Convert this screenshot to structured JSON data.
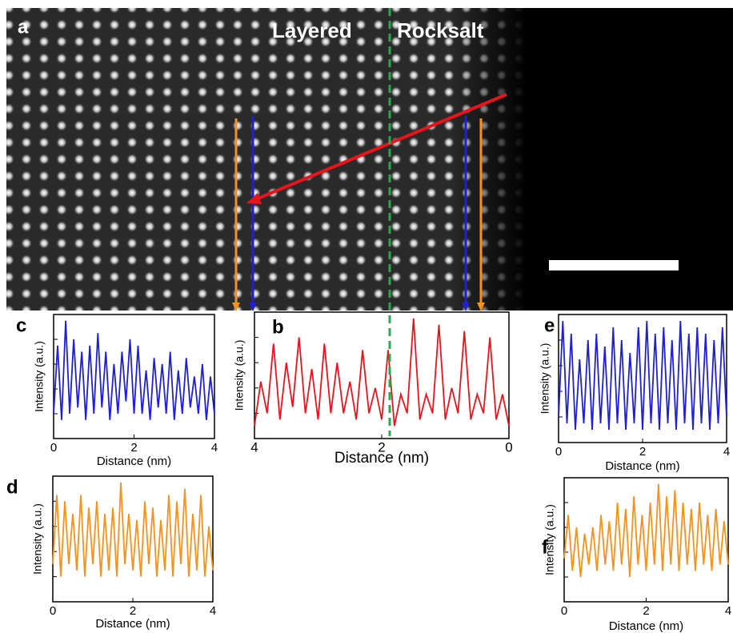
{
  "image": {
    "label": "a",
    "annotations": [
      "Layered",
      "Rocksalt"
    ]
  },
  "chart_data": [
    {
      "type": "line",
      "label": "c",
      "xlabel": "Distance (nm)",
      "ylabel": "Intensity (a.u.)",
      "xlim": [
        0,
        4
      ],
      "xticks": [
        0,
        2,
        4
      ],
      "ylim": [
        0,
        1
      ],
      "x": [
        0,
        0.1,
        0.2,
        0.3,
        0.4,
        0.5,
        0.6,
        0.7,
        0.8,
        0.9,
        1,
        1.1,
        1.2,
        1.3,
        1.4,
        1.5,
        1.6,
        1.7,
        1.8,
        1.9,
        2,
        2.1,
        2.2,
        2.3,
        2.4,
        2.5,
        2.6,
        2.7,
        2.8,
        2.9,
        3,
        3.1,
        3.2,
        3.3,
        3.4,
        3.5,
        3.6,
        3.7,
        3.8,
        3.9,
        4
      ],
      "series": [
        {
          "color": "#1f1fd6",
          "values": [
            0.2,
            0.75,
            0.15,
            0.95,
            0.2,
            0.8,
            0.25,
            0.7,
            0.15,
            0.75,
            0.2,
            0.85,
            0.25,
            0.7,
            0.15,
            0.6,
            0.2,
            0.7,
            0.3,
            0.8,
            0.2,
            0.75,
            0.2,
            0.55,
            0.15,
            0.65,
            0.25,
            0.6,
            0.2,
            0.7,
            0.15,
            0.55,
            0.2,
            0.65,
            0.25,
            0.5,
            0.2,
            0.6,
            0.15,
            0.5,
            0.2
          ]
        }
      ]
    },
    {
      "type": "line",
      "label": "b",
      "xlabel": "Distance (nm)",
      "ylabel": "Intensity (a.u.)",
      "xlim": [
        4,
        0
      ],
      "xticks": [
        4,
        2,
        0
      ],
      "ylim": [
        0,
        1
      ],
      "x": [
        0,
        0.1,
        0.2,
        0.3,
        0.4,
        0.5,
        0.6,
        0.7,
        0.8,
        0.9,
        1,
        1.1,
        1.2,
        1.3,
        1.4,
        1.5,
        1.6,
        1.7,
        1.8,
        1.9,
        2,
        2.1,
        2.2,
        2.3,
        2.4,
        2.5,
        2.6,
        2.7,
        2.8,
        2.9,
        3,
        3.1,
        3.2,
        3.3,
        3.4,
        3.5,
        3.6,
        3.7,
        3.8,
        3.9,
        4
      ],
      "series": [
        {
          "color": "#e8141c",
          "values": [
            0.1,
            0.35,
            0.15,
            0.8,
            0.2,
            0.35,
            0.15,
            0.85,
            0.2,
            0.4,
            0.15,
            0.9,
            0.2,
            0.35,
            0.15,
            0.95,
            0.2,
            0.35,
            0.1,
            0.7,
            0.15,
            0.4,
            0.2,
            0.7,
            0.15,
            0.45,
            0.2,
            0.6,
            0.2,
            0.75,
            0.15,
            0.55,
            0.2,
            0.8,
            0.25,
            0.6,
            0.15,
            0.75,
            0.2,
            0.45,
            0.1
          ]
        }
      ]
    },
    {
      "type": "line",
      "label": "e",
      "xlabel": "Distance (nm)",
      "ylabel": "Intensity (a.u.)",
      "xlim": [
        0,
        4
      ],
      "xticks": [
        0,
        2,
        4
      ],
      "ylim": [
        0,
        1
      ],
      "x": [
        0,
        0.1,
        0.2,
        0.3,
        0.4,
        0.5,
        0.6,
        0.7,
        0.8,
        0.9,
        1,
        1.1,
        1.2,
        1.3,
        1.4,
        1.5,
        1.6,
        1.7,
        1.8,
        1.9,
        2,
        2.1,
        2.2,
        2.3,
        2.4,
        2.5,
        2.6,
        2.7,
        2.8,
        2.9,
        3,
        3.1,
        3.2,
        3.3,
        3.4,
        3.5,
        3.6,
        3.7,
        3.8,
        3.9,
        4
      ],
      "series": [
        {
          "color": "#1f1fd6",
          "values": [
            0.2,
            0.95,
            0.15,
            0.85,
            0.1,
            0.65,
            0.15,
            0.8,
            0.1,
            0.85,
            0.15,
            0.75,
            0.1,
            0.9,
            0.15,
            0.8,
            0.1,
            0.7,
            0.15,
            0.9,
            0.1,
            0.95,
            0.15,
            0.85,
            0.1,
            0.9,
            0.15,
            0.8,
            0.1,
            0.95,
            0.15,
            0.85,
            0.1,
            0.9,
            0.15,
            0.85,
            0.1,
            0.8,
            0.15,
            0.9,
            0.2
          ]
        }
      ]
    },
    {
      "type": "line",
      "label": "d",
      "xlabel": "Distance (nm)",
      "ylabel": "Intensity (a.u.)",
      "xlim": [
        0,
        4
      ],
      "xticks": [
        0,
        2,
        4
      ],
      "ylim": [
        0,
        1
      ],
      "x": [
        0,
        0.1,
        0.2,
        0.3,
        0.4,
        0.5,
        0.6,
        0.7,
        0.8,
        0.9,
        1,
        1.1,
        1.2,
        1.3,
        1.4,
        1.5,
        1.6,
        1.7,
        1.8,
        1.9,
        2,
        2.1,
        2.2,
        2.3,
        2.4,
        2.5,
        2.6,
        2.7,
        2.8,
        2.9,
        3,
        3.1,
        3.2,
        3.3,
        3.4,
        3.5,
        3.6,
        3.7,
        3.8,
        3.9,
        4
      ],
      "series": [
        {
          "color": "#f5921e",
          "values": [
            0.3,
            0.85,
            0.2,
            0.8,
            0.3,
            0.7,
            0.25,
            0.85,
            0.2,
            0.75,
            0.3,
            0.8,
            0.2,
            0.7,
            0.25,
            0.75,
            0.2,
            0.95,
            0.3,
            0.7,
            0.25,
            0.65,
            0.2,
            0.8,
            0.3,
            0.75,
            0.2,
            0.65,
            0.25,
            0.85,
            0.2,
            0.8,
            0.3,
            0.9,
            0.2,
            0.7,
            0.25,
            0.85,
            0.2,
            0.6,
            0.25
          ]
        }
      ]
    },
    {
      "type": "line",
      "label": "f",
      "xlabel": "Distance (nm)",
      "ylabel": "Intensity (a.u.)",
      "xlim": [
        0,
        4
      ],
      "xticks": [
        0,
        2,
        4
      ],
      "ylim": [
        0,
        1
      ],
      "x": [
        0,
        0.1,
        0.2,
        0.3,
        0.4,
        0.5,
        0.6,
        0.7,
        0.8,
        0.9,
        1,
        1.1,
        1.2,
        1.3,
        1.4,
        1.5,
        1.6,
        1.7,
        1.8,
        1.9,
        2,
        2.1,
        2.2,
        2.3,
        2.4,
        2.5,
        2.6,
        2.7,
        2.8,
        2.9,
        3,
        3.1,
        3.2,
        3.3,
        3.4,
        3.5,
        3.6,
        3.7,
        3.8,
        3.9,
        4
      ],
      "series": [
        {
          "color": "#f5921e",
          "values": [
            0.35,
            0.7,
            0.25,
            0.6,
            0.2,
            0.55,
            0.3,
            0.6,
            0.25,
            0.7,
            0.3,
            0.65,
            0.25,
            0.8,
            0.3,
            0.75,
            0.2,
            0.85,
            0.3,
            0.7,
            0.25,
            0.8,
            0.3,
            0.95,
            0.25,
            0.85,
            0.3,
            0.9,
            0.25,
            0.8,
            0.3,
            0.75,
            0.25,
            0.8,
            0.3,
            0.7,
            0.25,
            0.75,
            0.3,
            0.65,
            0.3
          ]
        }
      ]
    }
  ]
}
